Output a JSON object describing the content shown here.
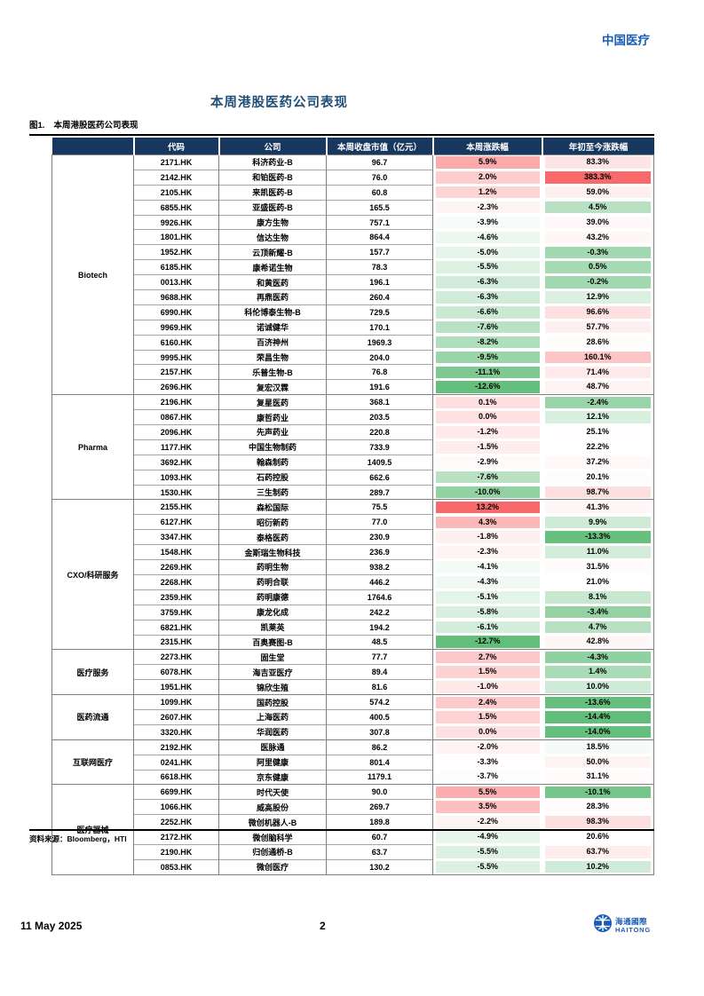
{
  "page": {
    "brand": "中国医疗",
    "title": "本周港股医药公司表现",
    "figure_label": "图1.",
    "figure_title": "本周港股医药公司表现",
    "source": "资料来源：Bloomberg，HTI",
    "date": "11 May 2025",
    "page_number": "2",
    "logo_cn": "海通國際",
    "logo_en": "HAITONG"
  },
  "colors": {
    "header_bg": "#17375E",
    "header_text": "#FFFFFF",
    "brand_blue": "#1A5CB5",
    "title_blue": "#1F4E79",
    "scale_max_red": "#F8696B",
    "scale_mid_white": "#FFFFFF",
    "scale_min_green": "#63BE7B"
  },
  "table": {
    "headers": [
      "代码",
      "公司",
      "本周收盘市值（亿元）",
      "本周涨跌幅",
      "年初至今涨跌幅"
    ],
    "groups": [
      {
        "name": "Biotech",
        "rows": [
          [
            "2171.HK",
            "科济药业-B",
            "96.7",
            "5.9%",
            "83.3%"
          ],
          [
            "2142.HK",
            "和铂医药-B",
            "76.0",
            "2.0%",
            "383.3%"
          ],
          [
            "2105.HK",
            "来凯医药-B",
            "60.8",
            "1.2%",
            "59.0%"
          ],
          [
            "6855.HK",
            "亚盛医药-B",
            "165.5",
            "-2.3%",
            "4.5%"
          ],
          [
            "9926.HK",
            "康方生物",
            "757.1",
            "-3.9%",
            "39.0%"
          ],
          [
            "1801.HK",
            "信达生物",
            "864.4",
            "-4.6%",
            "43.2%"
          ],
          [
            "1952.HK",
            "云顶新耀-B",
            "157.7",
            "-5.0%",
            "-0.3%"
          ],
          [
            "6185.HK",
            "康希诺生物",
            "78.3",
            "-5.5%",
            "0.5%"
          ],
          [
            "0013.HK",
            "和黄医药",
            "196.1",
            "-6.3%",
            "-0.2%"
          ],
          [
            "9688.HK",
            "再鼎医药",
            "260.4",
            "-6.3%",
            "12.9%"
          ],
          [
            "6990.HK",
            "科伦博泰生物-B",
            "729.5",
            "-6.6%",
            "96.6%"
          ],
          [
            "9969.HK",
            "诺诚健华",
            "170.1",
            "-7.6%",
            "57.7%"
          ],
          [
            "6160.HK",
            "百济神州",
            "1969.3",
            "-8.2%",
            "28.6%"
          ],
          [
            "9995.HK",
            "荣昌生物",
            "204.0",
            "-9.5%",
            "160.1%"
          ],
          [
            "2157.HK",
            "乐普生物-B",
            "76.8",
            "-11.1%",
            "71.4%"
          ],
          [
            "2696.HK",
            "复宏汉霖",
            "191.6",
            "-12.6%",
            "48.7%"
          ]
        ]
      },
      {
        "name": "Pharma",
        "rows": [
          [
            "2196.HK",
            "复星医药",
            "368.1",
            "0.1%",
            "-2.4%"
          ],
          [
            "0867.HK",
            "康哲药业",
            "203.5",
            "0.0%",
            "12.1%"
          ],
          [
            "2096.HK",
            "先声药业",
            "220.8",
            "-1.2%",
            "25.1%"
          ],
          [
            "1177.HK",
            "中国生物制药",
            "733.9",
            "-1.5%",
            "22.2%"
          ],
          [
            "3692.HK",
            "翰森制药",
            "1409.5",
            "-2.9%",
            "37.2%"
          ],
          [
            "1093.HK",
            "石药控股",
            "662.6",
            "-7.6%",
            "20.1%"
          ],
          [
            "1530.HK",
            "三生制药",
            "289.7",
            "-10.0%",
            "98.7%"
          ]
        ]
      },
      {
        "name": "CXO/科研服务",
        "rows": [
          [
            "2155.HK",
            "森松国际",
            "75.5",
            "13.2%",
            "41.3%"
          ],
          [
            "6127.HK",
            "昭衍新药",
            "77.0",
            "4.3%",
            "9.9%"
          ],
          [
            "3347.HK",
            "泰格医药",
            "230.9",
            "-1.8%",
            "-13.3%"
          ],
          [
            "1548.HK",
            "金斯瑞生物科技",
            "236.9",
            "-2.3%",
            "11.0%"
          ],
          [
            "2269.HK",
            "药明生物",
            "938.2",
            "-4.1%",
            "31.5%"
          ],
          [
            "2268.HK",
            "药明合联",
            "446.2",
            "-4.3%",
            "21.0%"
          ],
          [
            "2359.HK",
            "药明康德",
            "1764.6",
            "-5.1%",
            "8.1%"
          ],
          [
            "3759.HK",
            "康龙化成",
            "242.2",
            "-5.8%",
            "-3.4%"
          ],
          [
            "6821.HK",
            "凯莱英",
            "194.2",
            "-6.1%",
            "4.7%"
          ],
          [
            "2315.HK",
            "百奥赛图-B",
            "48.5",
            "-12.7%",
            "42.8%"
          ]
        ]
      },
      {
        "name": "医疗服务",
        "rows": [
          [
            "2273.HK",
            "固生堂",
            "77.7",
            "2.7%",
            "-4.3%"
          ],
          [
            "6078.HK",
            "海吉亚医疗",
            "89.4",
            "1.5%",
            "1.4%"
          ],
          [
            "1951.HK",
            "锦欣生殖",
            "81.6",
            "-1.0%",
            "10.0%"
          ]
        ]
      },
      {
        "name": "医药流通",
        "rows": [
          [
            "1099.HK",
            "国药控股",
            "574.2",
            "2.4%",
            "-13.6%"
          ],
          [
            "2607.HK",
            "上海医药",
            "400.5",
            "1.5%",
            "-14.4%"
          ],
          [
            "3320.HK",
            "华润医药",
            "307.8",
            "0.0%",
            "-14.0%"
          ]
        ]
      },
      {
        "name": "互联网医疗",
        "rows": [
          [
            "2192.HK",
            "医脉通",
            "86.2",
            "-2.0%",
            "18.5%"
          ],
          [
            "0241.HK",
            "阿里健康",
            "801.4",
            "-3.3%",
            "50.0%"
          ],
          [
            "6618.HK",
            "京东健康",
            "1179.1",
            "-3.7%",
            "31.1%"
          ]
        ]
      },
      {
        "name": "医疗器械",
        "rows": [
          [
            "6699.HK",
            "时代天使",
            "90.0",
            "5.5%",
            "-10.1%"
          ],
          [
            "1066.HK",
            "威高股份",
            "269.7",
            "3.5%",
            "28.3%"
          ],
          [
            "2252.HK",
            "微创机器人-B",
            "189.8",
            "-2.2%",
            "98.3%"
          ],
          [
            "2172.HK",
            "微创脑科学",
            "60.7",
            "-4.9%",
            "20.6%"
          ],
          [
            "2190.HK",
            "归创通桥-B",
            "63.7",
            "-5.5%",
            "63.7%"
          ],
          [
            "0853.HK",
            "微创医疗",
            "130.2",
            "-5.5%",
            "10.2%"
          ]
        ]
      }
    ]
  }
}
